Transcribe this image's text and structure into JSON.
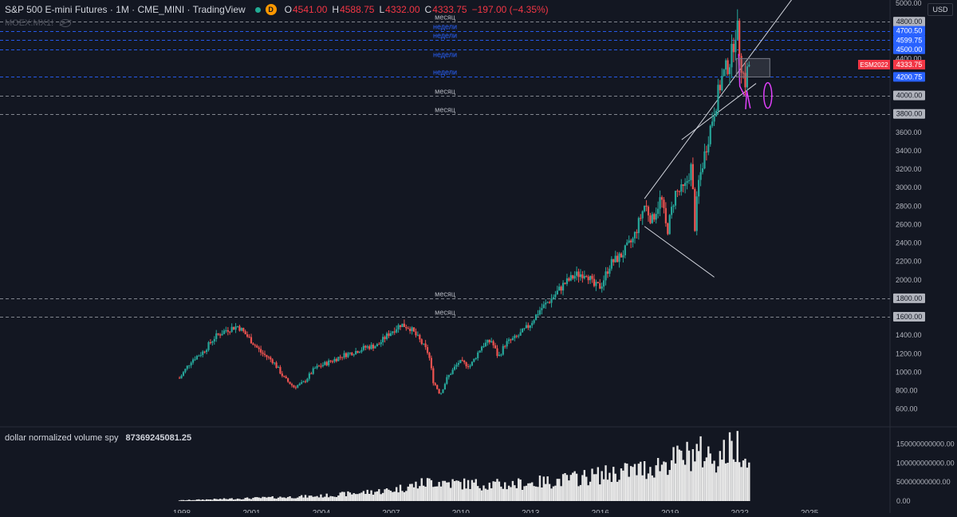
{
  "header": {
    "symbol_title": "S&P 500 E-mini Futures · 1M · CME_MINI · TradingView",
    "session_badge": "D",
    "ohlc": {
      "o_label": "O",
      "o": "4541.00",
      "h_label": "H",
      "h": "4588.75",
      "l_label": "L",
      "l": "4332.00",
      "c_label": "C",
      "c": "4333.75",
      "change": "−197.00 (−4.35%)"
    },
    "sub_indicator": "MOEX:MX1!",
    "currency": "USD"
  },
  "volume_panel": {
    "title": "dollar normalized volume spy",
    "value": "87369245081.25"
  },
  "colors": {
    "background": "#131722",
    "up": "#26a69a",
    "down": "#ef5350",
    "level_month": "#b2b5be",
    "level_week": "#2962ff",
    "pink": "#e040fb",
    "current_label": "#f23645"
  },
  "chart_data": [
    {
      "type": "candlestick",
      "title": "S&P 500 E-mini Futures · 1M · CME_MINI",
      "x_tick_labels": [
        "1998",
        "2001",
        "2004",
        "2007",
        "2010",
        "2013",
        "2016",
        "2019",
        "2022",
        "2025"
      ],
      "x_ticks_year": [
        1998,
        2001,
        2004,
        2007,
        2010,
        2013,
        2016,
        2019,
        2022,
        2025
      ],
      "xlim": [
        1998,
        2027.5
      ],
      "y_tick_labels": [
        "600.00",
        "800.00",
        "1000.00",
        "1200.00",
        "1400.00",
        "1600.00",
        "1800.00",
        "2000.00",
        "2200.00",
        "2400.00",
        "2600.00",
        "2800.00",
        "3000.00",
        "3200.00",
        "3400.00",
        "3600.00",
        "3800.00",
        "4000.00",
        "4200.00",
        "4400.00",
        "4600.00",
        "4800.00",
        "5000.00"
      ],
      "ylim": [
        450,
        5000
      ],
      "price_series": [
        [
          1997.9,
          900
        ],
        [
          1998.5,
          1130
        ],
        [
          1999.0,
          1220
        ],
        [
          1999.5,
          1380
        ],
        [
          2000.0,
          1460
        ],
        [
          2000.5,
          1500
        ],
        [
          2001.0,
          1360
        ],
        [
          2001.5,
          1210
        ],
        [
          2002.0,
          1120
        ],
        [
          2002.5,
          930
        ],
        [
          2002.9,
          840
        ],
        [
          2003.3,
          880
        ],
        [
          2003.8,
          1040
        ],
        [
          2004.5,
          1120
        ],
        [
          2005.0,
          1180
        ],
        [
          2005.5,
          1220
        ],
        [
          2006.0,
          1270
        ],
        [
          2006.5,
          1290
        ],
        [
          2007.0,
          1420
        ],
        [
          2007.5,
          1520
        ],
        [
          2007.9,
          1480
        ],
        [
          2008.3,
          1350
        ],
        [
          2008.7,
          1200
        ],
        [
          2008.9,
          900
        ],
        [
          2009.2,
          760
        ],
        [
          2009.5,
          940
        ],
        [
          2010.0,
          1110
        ],
        [
          2010.5,
          1070
        ],
        [
          2011.0,
          1290
        ],
        [
          2011.4,
          1340
        ],
        [
          2011.7,
          1160
        ],
        [
          2012.0,
          1310
        ],
        [
          2012.5,
          1380
        ],
        [
          2013.0,
          1500
        ],
        [
          2013.5,
          1680
        ],
        [
          2014.0,
          1800
        ],
        [
          2014.5,
          1950
        ],
        [
          2015.0,
          2050
        ],
        [
          2015.5,
          2080
        ],
        [
          2015.8,
          1930
        ],
        [
          2016.1,
          1930
        ],
        [
          2016.5,
          2170
        ],
        [
          2017.0,
          2270
        ],
        [
          2017.5,
          2440
        ],
        [
          2018.0,
          2820
        ],
        [
          2018.3,
          2640
        ],
        [
          2018.7,
          2900
        ],
        [
          2018.95,
          2510
        ],
        [
          2019.3,
          2940
        ],
        [
          2019.7,
          2980
        ],
        [
          2020.0,
          3230
        ],
        [
          2020.15,
          2580
        ],
        [
          2020.3,
          3040
        ],
        [
          2020.6,
          3400
        ],
        [
          2020.9,
          3750
        ],
        [
          2021.3,
          4180
        ],
        [
          2021.7,
          4400
        ],
        [
          2021.95,
          4780
        ],
        [
          2022.1,
          4420
        ],
        [
          2022.3,
          4130
        ],
        [
          2022.45,
          4333.75
        ]
      ],
      "current_price": "4333.75",
      "current_price_label": "ESM2022",
      "levels": [
        {
          "price": 4800,
          "label": "4800.00",
          "text": "месяц",
          "kind": "month"
        },
        {
          "price": 4700.5,
          "label": "4700.50",
          "text": "недели",
          "kind": "week"
        },
        {
          "price": 4599.75,
          "label": "4599.75",
          "text": "недели",
          "kind": "week"
        },
        {
          "price": 4500,
          "label": "4500.00",
          "text": "недели",
          "kind": "week"
        },
        {
          "price": 4200.75,
          "label": "4200.75",
          "text": "недели",
          "kind": "week"
        },
        {
          "price": 4000,
          "label": "4000.00",
          "text": "месяц",
          "kind": "month"
        },
        {
          "price": 3800,
          "label": "3800.00",
          "text": "месяц",
          "kind": "month"
        },
        {
          "price": 1800,
          "label": "1800.00",
          "text": "месяц",
          "kind": "month"
        },
        {
          "price": 1600,
          "label": "1600.00",
          "text": "месяц",
          "kind": "month"
        }
      ],
      "trendlines": [
        {
          "name": "channel-upper",
          "from": [
            2017.9,
            2880
          ],
          "to": [
            2025.0,
            5300
          ]
        },
        {
          "name": "channel-lower",
          "from": [
            2017.9,
            2580
          ],
          "to": [
            2020.9,
            2030
          ]
        },
        {
          "name": "support-line",
          "from": [
            2019.5,
            3520
          ],
          "to": [
            2022.7,
            4130
          ]
        }
      ],
      "grid": false,
      "legend": "none"
    },
    {
      "type": "bar",
      "title": "dollar normalized volume spy",
      "y_tick_labels": [
        "0.00",
        "50000000000.00",
        "100000000000.00",
        "150000000000.00"
      ],
      "ylim": [
        0,
        185000000000
      ],
      "last_value": 87369245081.25,
      "volume_trend": [
        [
          1997.9,
          2000000000.0
        ],
        [
          2001.0,
          8000000000.0
        ],
        [
          2004.0,
          14000000000.0
        ],
        [
          2007.0,
          30000000000.0
        ],
        [
          2008.8,
          55000000000.0
        ],
        [
          2010.0,
          48000000000.0
        ],
        [
          2012.0,
          45000000000.0
        ],
        [
          2014.0,
          55000000000.0
        ],
        [
          2016.0,
          72000000000.0
        ],
        [
          2018.0,
          90000000000.0
        ],
        [
          2020.2,
          135000000000.0
        ],
        [
          2021.0,
          120000000000.0
        ],
        [
          2022.0,
          160000000000.0
        ],
        [
          2022.45,
          87000000000.0
        ]
      ]
    }
  ]
}
